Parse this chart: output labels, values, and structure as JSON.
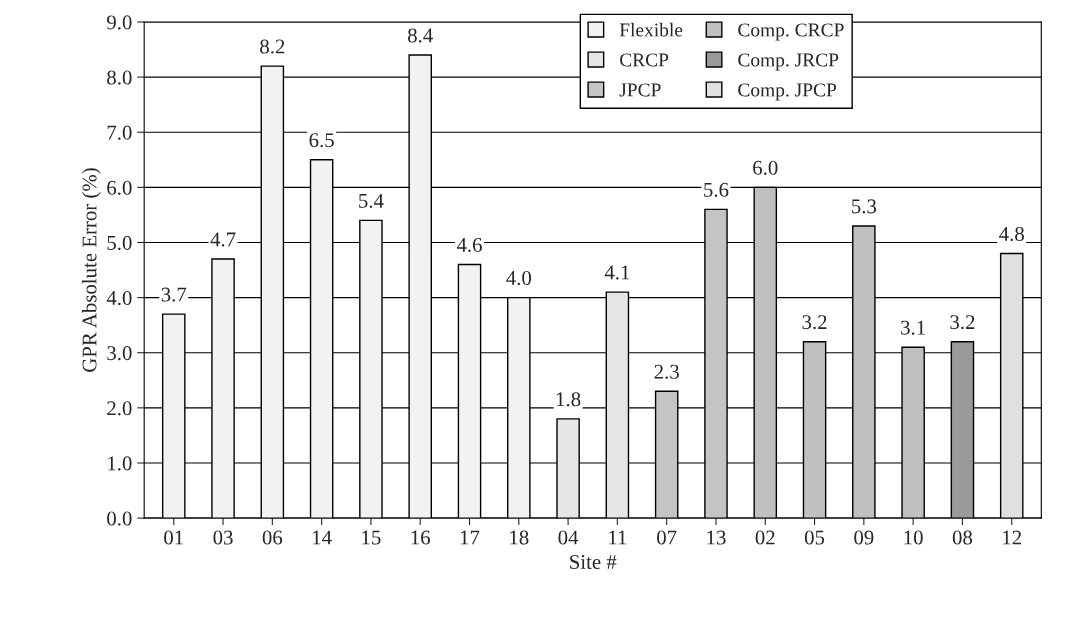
{
  "chart_data": {
    "type": "bar",
    "xlabel": "Site #",
    "ylabel": "GPR Absolute Error (%)",
    "categories": [
      "01",
      "03",
      "06",
      "14",
      "15",
      "16",
      "17",
      "18",
      "04",
      "11",
      "07",
      "13",
      "02",
      "05",
      "09",
      "10",
      "08",
      "12"
    ],
    "series": [
      {
        "name": "Flexible",
        "color": "#f2f2f2",
        "values": [
          3.7,
          4.7,
          8.2,
          6.5,
          5.4,
          8.4,
          4.6,
          4.0,
          null,
          null,
          null,
          null,
          null,
          null,
          null,
          null,
          null,
          null
        ],
        "value_labels": [
          "3.7",
          "4.7",
          "8.2",
          "6.5",
          "5.4",
          "8.4",
          "4.6",
          "4.0",
          null,
          null,
          null,
          null,
          null,
          null,
          null,
          null,
          null,
          null
        ]
      },
      {
        "name": "CRCP",
        "color": "#e6e6e6",
        "values": [
          null,
          null,
          null,
          null,
          null,
          null,
          null,
          null,
          1.8,
          4.1,
          null,
          null,
          null,
          null,
          null,
          null,
          null,
          null
        ],
        "value_labels": [
          null,
          null,
          null,
          null,
          null,
          null,
          null,
          null,
          "1.8",
          "4.1",
          null,
          null,
          null,
          null,
          null,
          null,
          null,
          null
        ]
      },
      {
        "name": "JPCP",
        "color": "#c4c4c4",
        "values": [
          null,
          null,
          null,
          null,
          null,
          null,
          null,
          null,
          null,
          null,
          2.3,
          5.6,
          null,
          null,
          null,
          null,
          null,
          null
        ],
        "value_labels": [
          null,
          null,
          null,
          null,
          null,
          null,
          null,
          null,
          null,
          null,
          "2.3",
          "5.6",
          null,
          null,
          null,
          null,
          null,
          null
        ]
      },
      {
        "name": "Comp. CRCP",
        "color": "#c0c0c0",
        "values": [
          null,
          null,
          null,
          null,
          null,
          null,
          null,
          null,
          null,
          null,
          null,
          null,
          6.0,
          3.2,
          5.3,
          3.1,
          null,
          null
        ],
        "value_labels": [
          null,
          null,
          null,
          null,
          null,
          null,
          null,
          null,
          null,
          null,
          null,
          null,
          "6.0",
          "3.2",
          "5.3",
          "3.1",
          null,
          null
        ]
      },
      {
        "name": "Comp. JRCP",
        "color": "#9a9a9a",
        "values": [
          null,
          null,
          null,
          null,
          null,
          null,
          null,
          null,
          null,
          null,
          null,
          null,
          null,
          null,
          null,
          null,
          3.2,
          null
        ],
        "value_labels": [
          null,
          null,
          null,
          null,
          null,
          null,
          null,
          null,
          null,
          null,
          null,
          null,
          null,
          null,
          null,
          null,
          "3.2",
          null
        ]
      },
      {
        "name": "Comp. JPCP",
        "color": "#e0e0e0",
        "values": [
          null,
          null,
          null,
          null,
          null,
          null,
          null,
          null,
          null,
          null,
          null,
          null,
          null,
          null,
          null,
          null,
          null,
          4.8
        ],
        "value_labels": [
          null,
          null,
          null,
          null,
          null,
          null,
          null,
          null,
          null,
          null,
          null,
          null,
          null,
          null,
          null,
          null,
          null,
          "4.8"
        ]
      }
    ],
    "ylim": [
      0,
      9
    ],
    "yticks": [
      {
        "value": 0,
        "label": "0.0"
      },
      {
        "value": 1,
        "label": "1.0"
      },
      {
        "value": 2,
        "label": "2.0"
      },
      {
        "value": 3,
        "label": "3.0"
      },
      {
        "value": 4,
        "label": "4.0"
      },
      {
        "value": 5,
        "label": "5.0"
      },
      {
        "value": 6,
        "label": "6.0"
      },
      {
        "value": 7,
        "label": "7.0"
      },
      {
        "value": 8,
        "label": "8.0"
      },
      {
        "value": 9,
        "label": "9.0"
      }
    ],
    "grid": "y",
    "legend": "top right"
  }
}
